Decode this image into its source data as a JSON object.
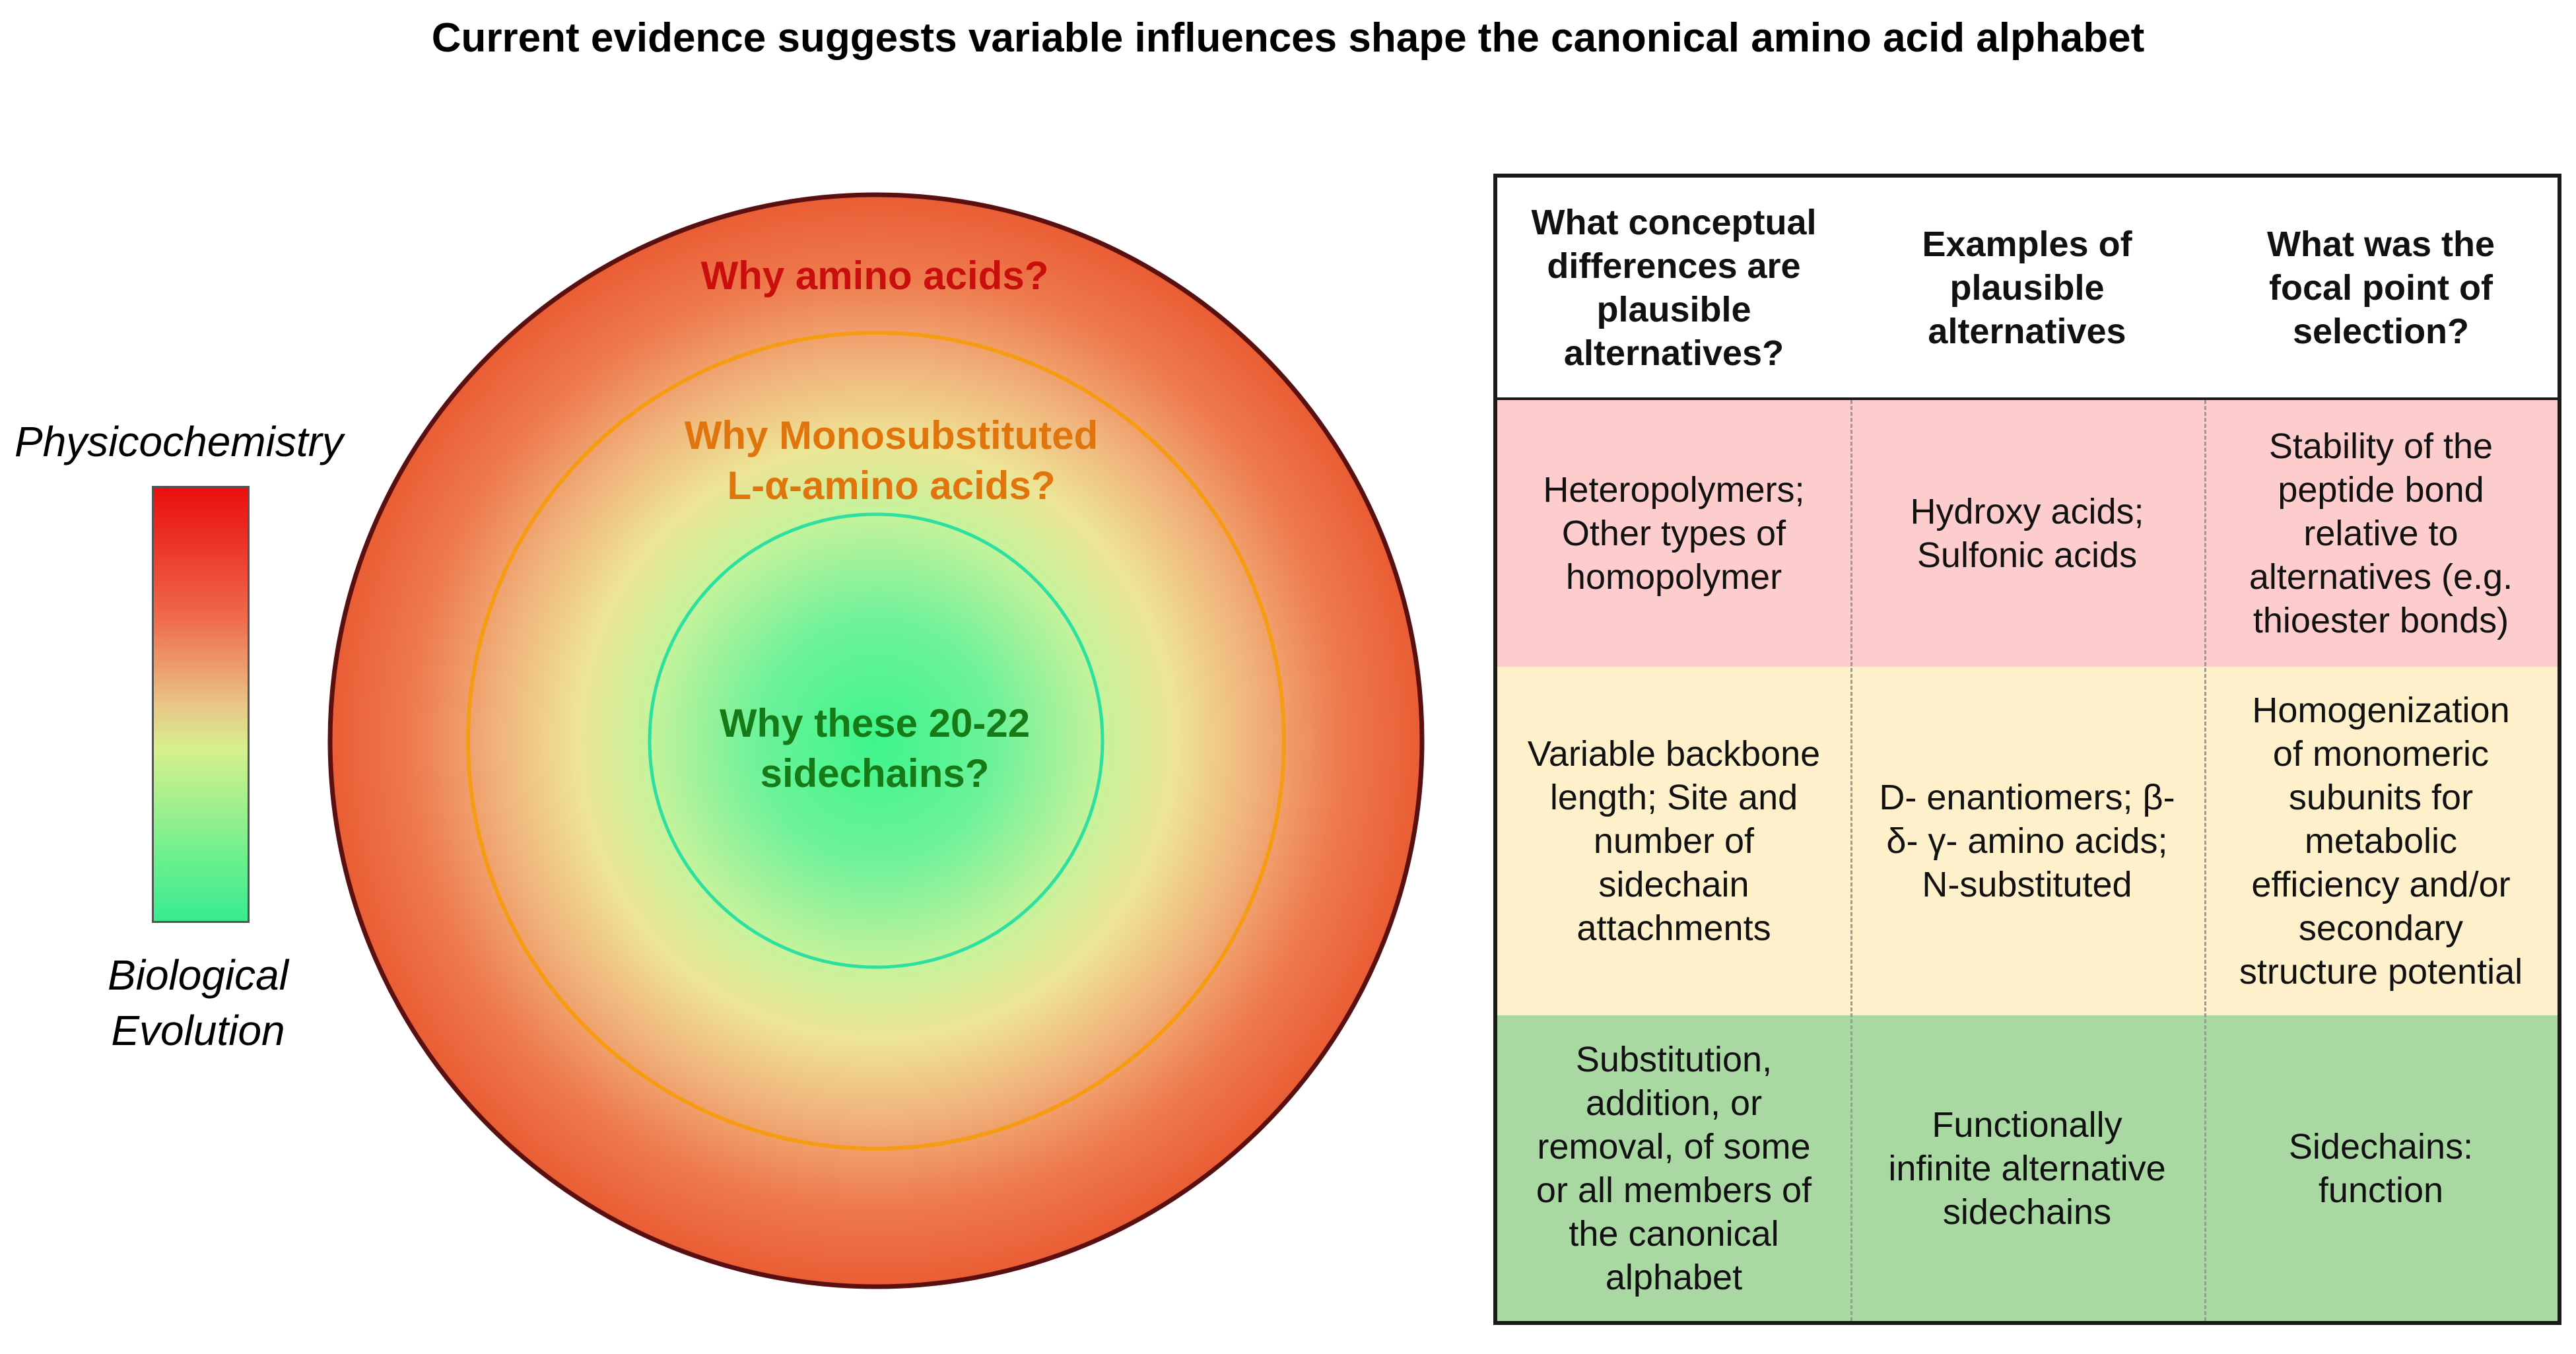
{
  "title": "Current evidence suggests variable influences shape the canonical amino acid alphabet",
  "legend": {
    "top_label": "Physicochemistry",
    "bottom_label_line1": "Biological",
    "bottom_label_line2": "Evolution"
  },
  "circles": {
    "outer_label": "Why amino acids?",
    "middle_label_line1": "Why Monosubstituted",
    "middle_label_line2": "L-α-amino acids?",
    "inner_label_line1": "Why these 20-22",
    "inner_label_line2": "sidechains?"
  },
  "table": {
    "headers": [
      [
        "What conceptual",
        "differences are",
        "plausible",
        "alternatives?"
      ],
      [
        "Examples of",
        "plausible",
        "alternatives"
      ],
      [
        "What was the",
        "focal point of",
        "selection?"
      ]
    ],
    "rows": [
      {
        "color": "#fdcccc",
        "cells": [
          [
            "Heteropolymers;",
            "Other types of",
            "homopolymer"
          ],
          [
            "Hydroxy acids;",
            "Sulfonic acids"
          ],
          [
            "Stability of the",
            "peptide bond",
            "relative to",
            "alternatives (e.g.",
            "thioester bonds)"
          ]
        ]
      },
      {
        "color": "#fdf0cb",
        "cells": [
          [
            "Variable backbone",
            "length; Site and",
            "number of",
            "sidechain",
            "attachments"
          ],
          [
            "D- enantiomers; β-",
            "δ- γ- amino acids;",
            "N-substituted"
          ],
          [
            "Homogenization",
            "of monomeric",
            "subunits for",
            "metabolic",
            "efficiency and/or",
            "secondary",
            "structure potential"
          ]
        ]
      },
      {
        "color": "#a9d8a3",
        "cells": [
          [
            "Substitution,",
            "addition, or",
            "removal, of some",
            "or all members of",
            "the canonical",
            "alphabet"
          ],
          [
            "Functionally",
            "infinite alternative",
            "sidechains"
          ],
          [
            "Sidechains:",
            "function"
          ]
        ]
      }
    ]
  },
  "colors": {
    "outer_label": "#c90e0e",
    "middle_label": "#e0750e",
    "inner_label": "#167a16",
    "middle_ring_stroke": "#f59c12",
    "inner_ring_stroke": "#2ee0a0",
    "outer_ring_stroke": "#5a1010"
  }
}
